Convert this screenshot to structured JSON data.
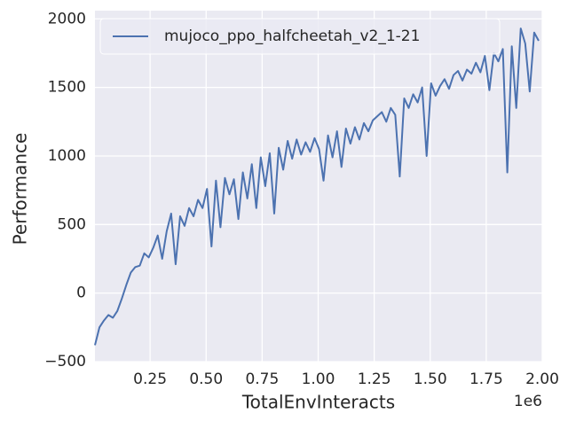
{
  "chart_data": {
    "type": "line",
    "x_label": "TotalEnvInteracts",
    "y_label": "Performance",
    "x_offset_label": "1e6",
    "legend": "upper left",
    "grid": true,
    "xlim": [
      4000,
      2000000
    ],
    "ylim": [
      -500,
      2060
    ],
    "xticks": [
      {
        "value": 250000,
        "label": "0.25"
      },
      {
        "value": 500000,
        "label": "0.50"
      },
      {
        "value": 750000,
        "label": "0.75"
      },
      {
        "value": 1000000,
        "label": "1.00"
      },
      {
        "value": 1250000,
        "label": "1.25"
      },
      {
        "value": 1500000,
        "label": "1.50"
      },
      {
        "value": 1750000,
        "label": "1.75"
      },
      {
        "value": 2000000,
        "label": "2.00"
      }
    ],
    "yticks": [
      {
        "value": -500,
        "label": "−500"
      },
      0,
      500,
      1000,
      1500,
      2000
    ],
    "x": [
      4000,
      24000,
      44000,
      64000,
      84000,
      104000,
      124000,
      144000,
      164000,
      184000,
      204000,
      224000,
      244000,
      264000,
      284000,
      304000,
      324000,
      344000,
      364000,
      384000,
      404000,
      424000,
      444000,
      464000,
      484000,
      504000,
      524000,
      544000,
      564000,
      584000,
      604000,
      624000,
      644000,
      664000,
      684000,
      704000,
      724000,
      744000,
      764000,
      784000,
      804000,
      824000,
      844000,
      864000,
      884000,
      904000,
      924000,
      944000,
      964000,
      984000,
      1004000,
      1024000,
      1044000,
      1064000,
      1084000,
      1104000,
      1124000,
      1144000,
      1164000,
      1184000,
      1204000,
      1224000,
      1244000,
      1264000,
      1284000,
      1304000,
      1324000,
      1344000,
      1364000,
      1384000,
      1404000,
      1424000,
      1444000,
      1464000,
      1484000,
      1504000,
      1524000,
      1544000,
      1564000,
      1584000,
      1604000,
      1624000,
      1644000,
      1664000,
      1684000,
      1704000,
      1724000,
      1744000,
      1764000,
      1784000,
      1804000,
      1824000,
      1844000,
      1864000,
      1884000,
      1904000,
      1924000,
      1944000,
      1964000,
      1984000
    ],
    "series": [
      {
        "name": "mujoco_ppo_halfcheetah_v2_1-21",
        "color": "#4c72b0",
        "values": [
          -380,
          -250,
          -200,
          -160,
          -180,
          -130,
          -40,
          60,
          150,
          190,
          200,
          290,
          260,
          330,
          420,
          250,
          450,
          580,
          210,
          560,
          490,
          620,
          560,
          680,
          620,
          760,
          340,
          820,
          480,
          840,
          720,
          830,
          540,
          880,
          690,
          940,
          620,
          990,
          780,
          1020,
          580,
          1060,
          900,
          1110,
          980,
          1120,
          1010,
          1100,
          1030,
          1130,
          1050,
          820,
          1150,
          990,
          1180,
          920,
          1200,
          1090,
          1210,
          1120,
          1240,
          1180,
          1260,
          1290,
          1320,
          1250,
          1350,
          1300,
          850,
          1420,
          1350,
          1450,
          1390,
          1500,
          1000,
          1530,
          1440,
          1510,
          1560,
          1490,
          1590,
          1620,
          1550,
          1630,
          1600,
          1680,
          1610,
          1730,
          1480,
          1750,
          1690,
          1780,
          880,
          1800,
          1350,
          1930,
          1820,
          1470,
          1900,
          1840
        ]
      }
    ]
  }
}
